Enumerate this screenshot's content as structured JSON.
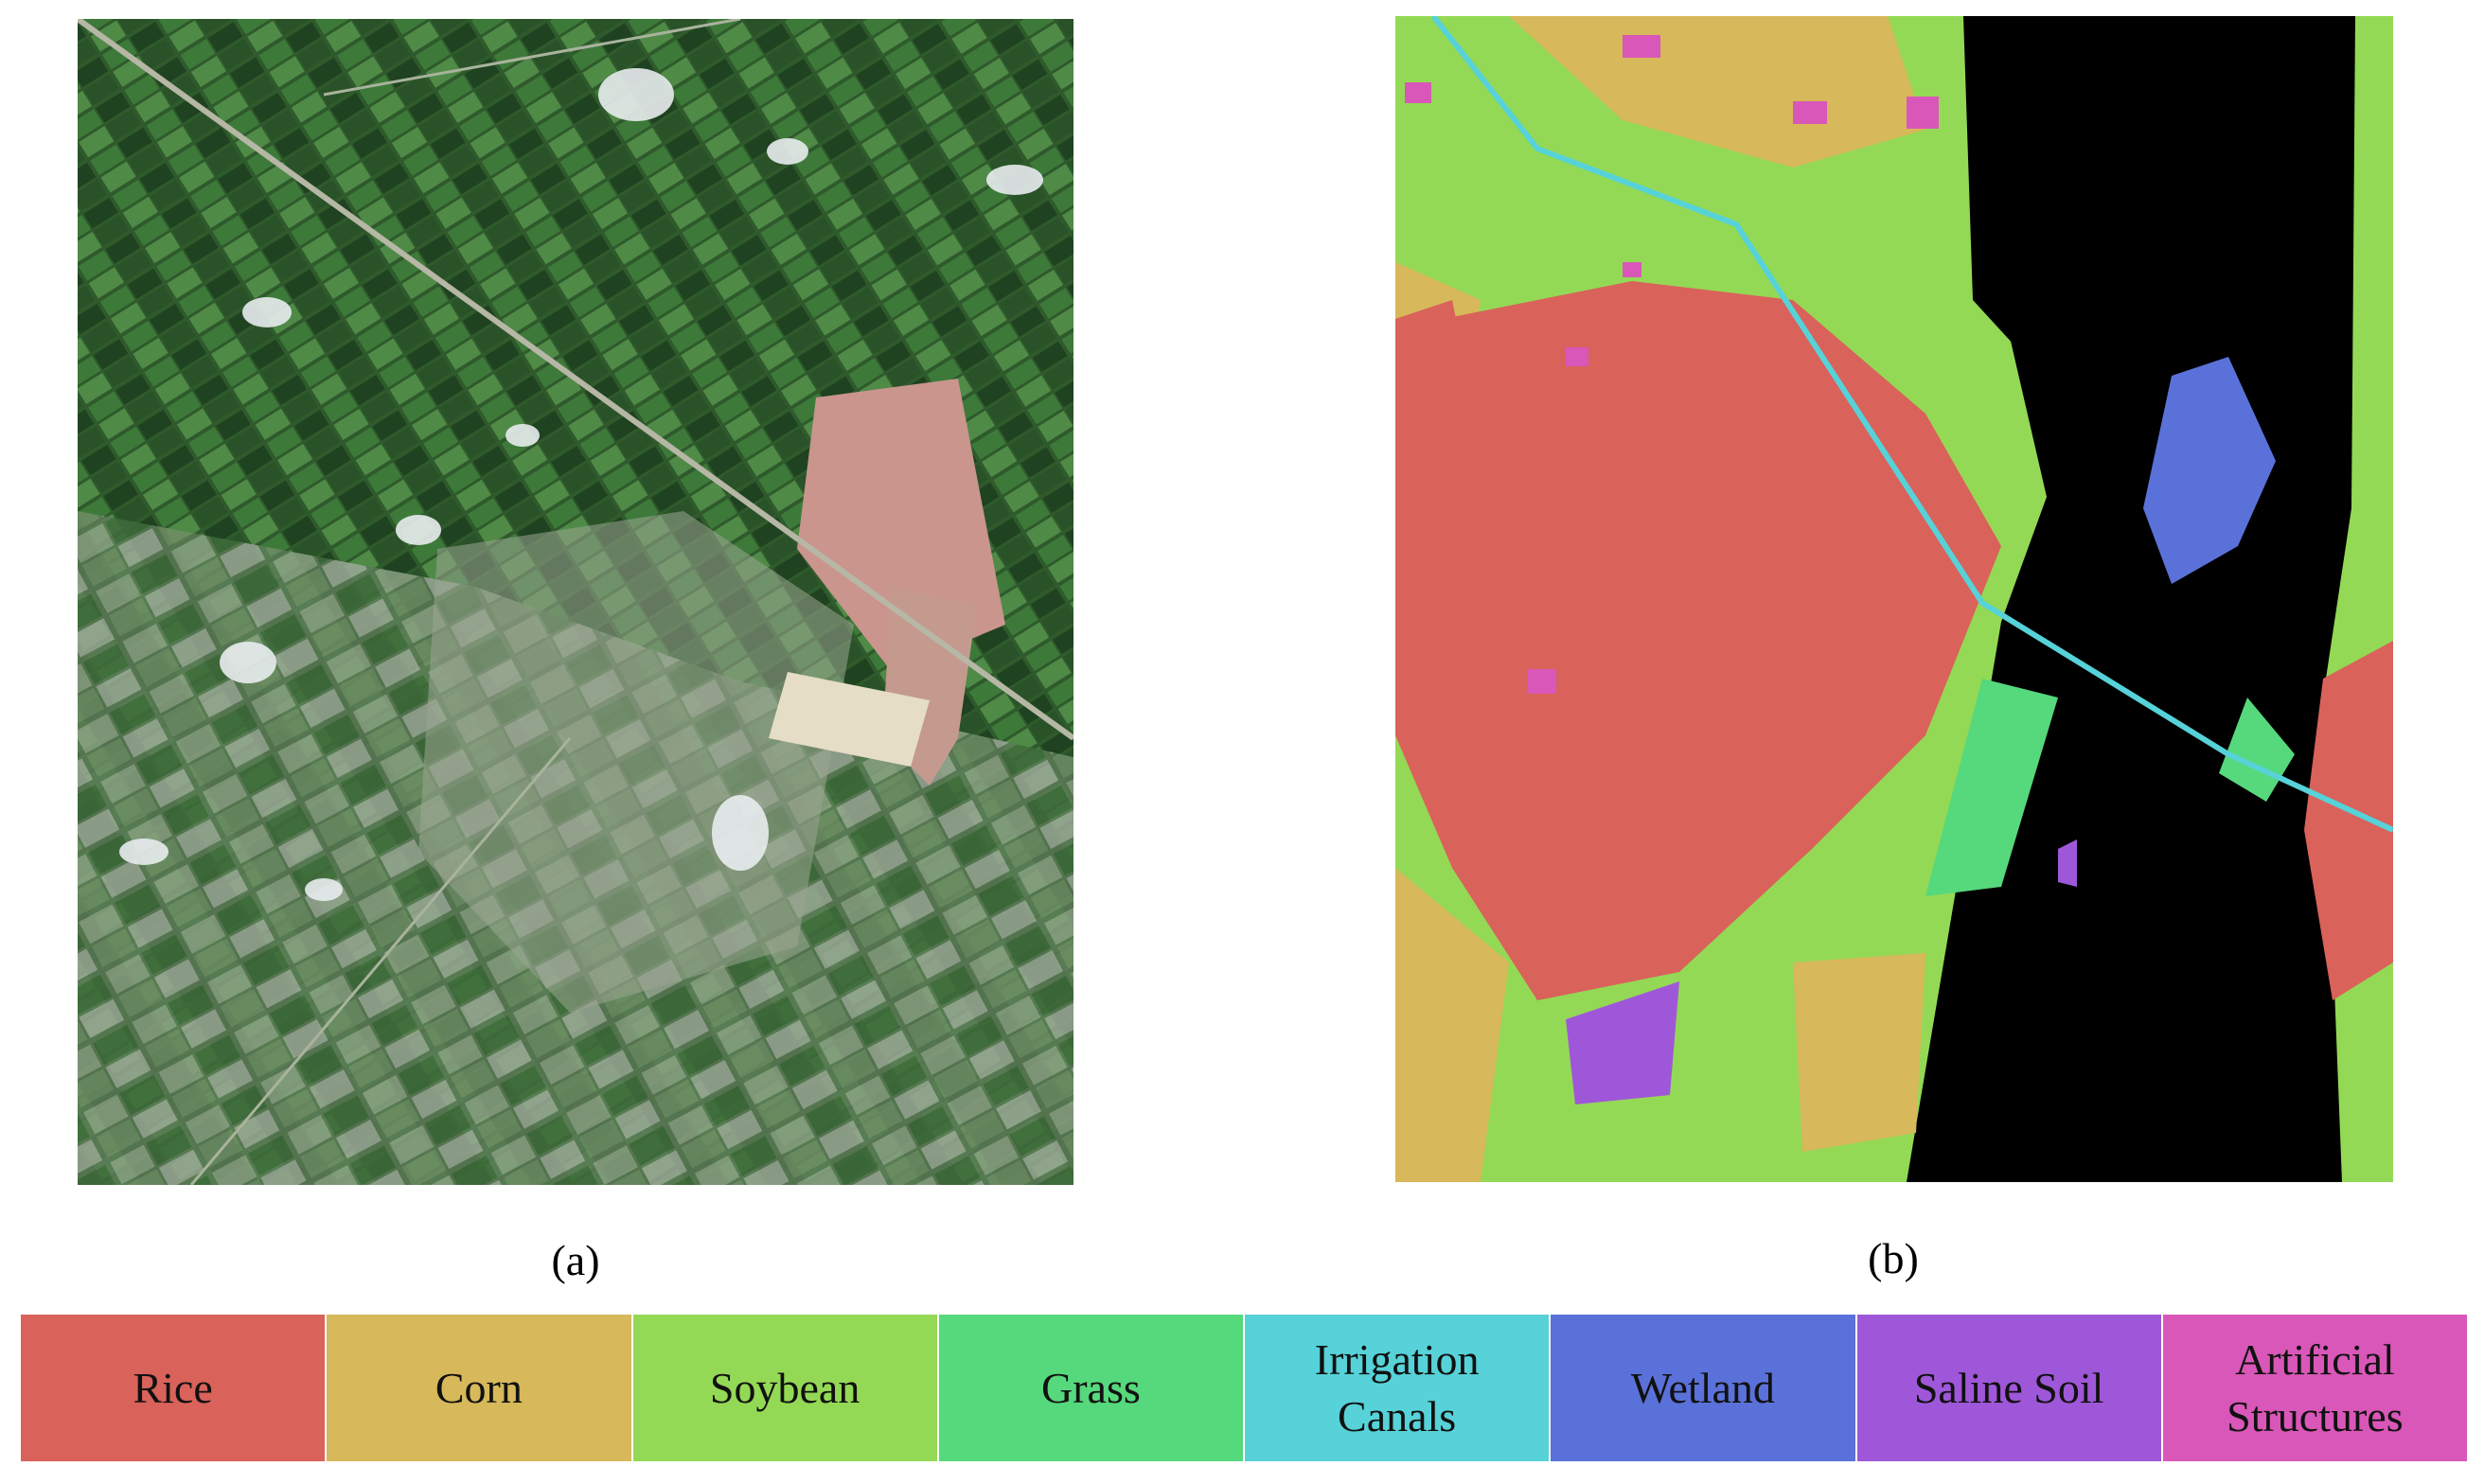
{
  "captions": {
    "a": "(a)",
    "b": "(b)"
  },
  "legend": [
    {
      "label": "Rice",
      "color": "#d9625a"
    },
    {
      "label": "Corn",
      "color": "#d7b85a"
    },
    {
      "label": "Soybean",
      "color": "#94d955"
    },
    {
      "label": "Grass",
      "color": "#56d87c"
    },
    {
      "label": "Irrigation\nCanals",
      "color": "#56d2d8"
    },
    {
      "label": "Wetland",
      "color": "#5b71da"
    },
    {
      "label": "Saline Soil",
      "color": "#9f57d9"
    },
    {
      "label": "Artificial\nStructures",
      "color": "#d957b8"
    }
  ],
  "map_background": "#000000"
}
